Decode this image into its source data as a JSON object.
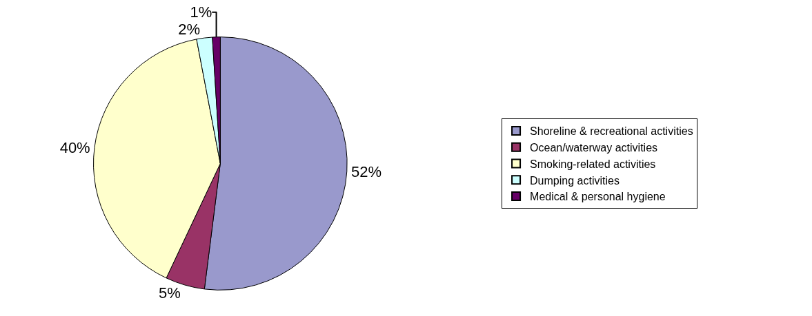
{
  "chart_data": {
    "type": "pie",
    "categories": [
      "Shoreline & recreational activities",
      "Ocean/waterway activities",
      "Smoking-related activities",
      "Dumping activities",
      "Medical & personal hygiene"
    ],
    "values": [
      52,
      5,
      40,
      2,
      1
    ],
    "value_labels": [
      "52%",
      "5%",
      "40%",
      "2%",
      "1%"
    ],
    "colors": [
      "#9999cc",
      "#993366",
      "#ffffcc",
      "#ccffff",
      "#660066"
    ],
    "legend": "right"
  }
}
